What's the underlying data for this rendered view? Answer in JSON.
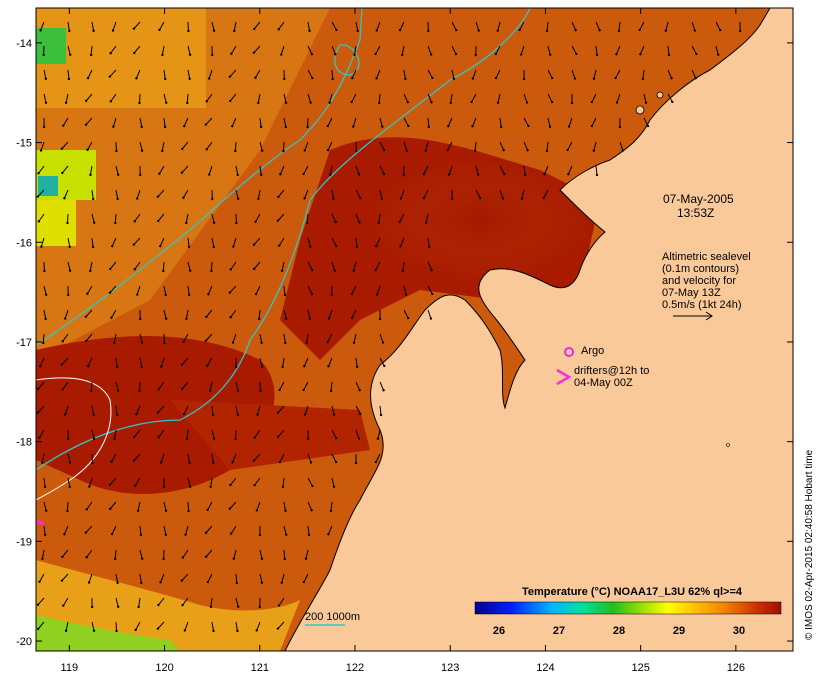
{
  "map": {
    "lon_range": [
      118.65,
      126.6
    ],
    "lat_range": [
      -20.1,
      -13.65
    ],
    "lon_ticks": [
      119,
      120,
      121,
      122,
      123,
      124,
      125,
      126
    ],
    "lat_ticks": [
      -14,
      -15,
      -16,
      -17,
      -18,
      -19,
      -20
    ],
    "colors": {
      "land": "#fac99a",
      "sst_warm": "#a81b00",
      "sst_mid": "#c44a0a",
      "sst_cool": "#d97a10",
      "contour": "#2fc9c9",
      "argo": "#e02ce0",
      "drifter": "#ff2ad8"
    }
  },
  "annotations": {
    "date": "07-May-2005",
    "time": "13:53Z",
    "altimetry_lines": [
      "Altimetric sealevel",
      "(0.1m contours)",
      "and velocity for",
      "07-May 13Z",
      "0.5m/s (1kt 24h)"
    ],
    "argo_label": "Argo",
    "drifters_lines": [
      "drifters@12h to",
      "04-May 00Z"
    ],
    "depth_label": "200  1000m"
  },
  "colorbar": {
    "title": "Temperature (°C) NOAA17_L3U 62% ql>=4",
    "ticks": [
      "26",
      "27",
      "28",
      "29",
      "30"
    ],
    "range": [
      25.6,
      30.7
    ]
  },
  "credit": "© IMOS 02-Apr-2015 02:40:58 Hobart time"
}
